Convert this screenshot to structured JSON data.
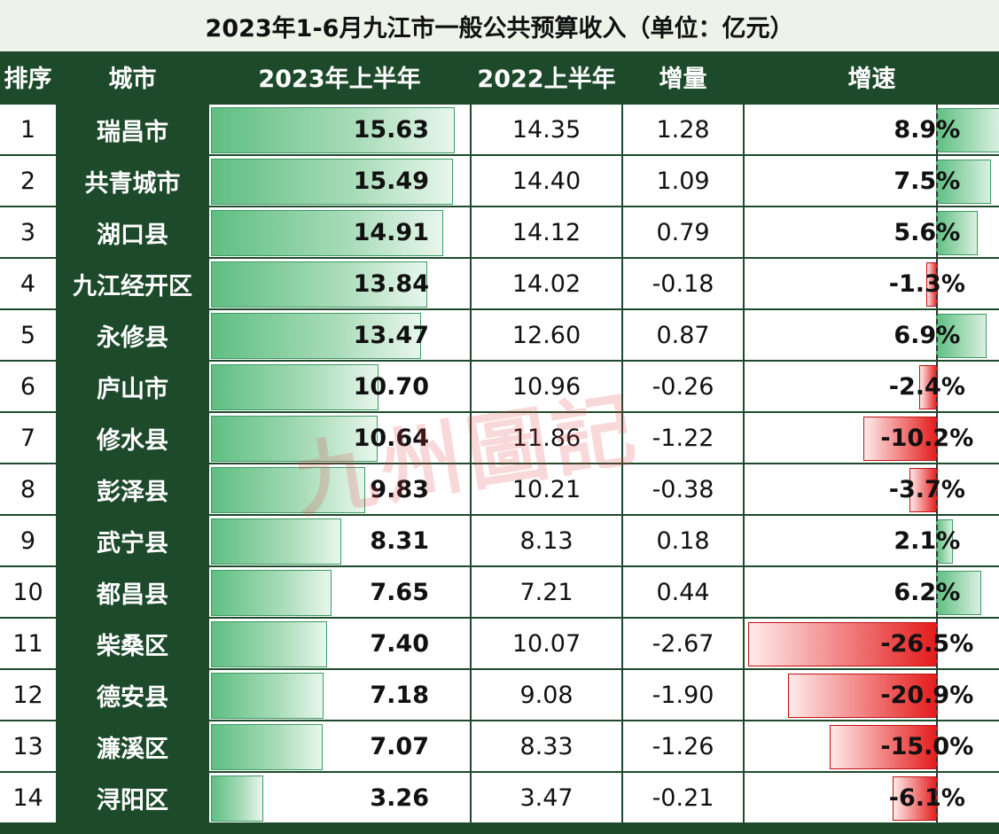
{
  "title": "2023年1-6月九江市一般公共预算收入（单位：亿元）",
  "watermark": "九州圖記",
  "colors": {
    "header_bg": "#1d4a2a",
    "positive": "#5fbf82",
    "negative": "#e41b1b"
  },
  "headers": {
    "rank": "排序",
    "city": "城市",
    "h2023": "2023年上半年",
    "h2022": "2022上半年",
    "increase": "增量",
    "growth": "增速"
  },
  "chart_data": {
    "type": "table",
    "title": "2023年1-6月九江市一般公共预算收入（单位：亿元）",
    "columns": [
      "排序",
      "城市",
      "2023年上半年",
      "2022上半年",
      "增量",
      "增速"
    ],
    "rows": [
      {
        "rank": "1",
        "city": "瑞昌市",
        "v2023": "15.63",
        "v2022": "14.35",
        "inc": "1.28",
        "growth": "8.9%",
        "gval": 8.9,
        "bval": 15.63
      },
      {
        "rank": "2",
        "city": "共青城市",
        "v2023": "15.49",
        "v2022": "14.40",
        "inc": "1.09",
        "growth": "7.5%",
        "gval": 7.5,
        "bval": 15.49
      },
      {
        "rank": "3",
        "city": "湖口县",
        "v2023": "14.91",
        "v2022": "14.12",
        "inc": "0.79",
        "growth": "5.6%",
        "gval": 5.6,
        "bval": 14.91
      },
      {
        "rank": "4",
        "city": "九江经开区",
        "v2023": "13.84",
        "v2022": "14.02",
        "inc": "-0.18",
        "growth": "-1.3%",
        "gval": -1.3,
        "bval": 13.84
      },
      {
        "rank": "5",
        "city": "永修县",
        "v2023": "13.47",
        "v2022": "12.60",
        "inc": "0.87",
        "growth": "6.9%",
        "gval": 6.9,
        "bval": 13.47
      },
      {
        "rank": "6",
        "city": "庐山市",
        "v2023": "10.70",
        "v2022": "10.96",
        "inc": "-0.26",
        "growth": "-2.4%",
        "gval": -2.4,
        "bval": 10.7
      },
      {
        "rank": "7",
        "city": "修水县",
        "v2023": "10.64",
        "v2022": "11.86",
        "inc": "-1.22",
        "growth": "-10.2%",
        "gval": -10.2,
        "bval": 10.64
      },
      {
        "rank": "8",
        "city": "彭泽县",
        "v2023": "9.83",
        "v2022": "10.21",
        "inc": "-0.38",
        "growth": "-3.7%",
        "gval": -3.7,
        "bval": 9.83
      },
      {
        "rank": "9",
        "city": "武宁县",
        "v2023": "8.31",
        "v2022": "8.13",
        "inc": "0.18",
        "growth": "2.1%",
        "gval": 2.1,
        "bval": 8.31
      },
      {
        "rank": "10",
        "city": "都昌县",
        "v2023": "7.65",
        "v2022": "7.21",
        "inc": "0.44",
        "growth": "6.2%",
        "gval": 6.2,
        "bval": 7.65
      },
      {
        "rank": "11",
        "city": "柴桑区",
        "v2023": "7.40",
        "v2022": "10.07",
        "inc": "-2.67",
        "growth": "-26.5%",
        "gval": -26.5,
        "bval": 7.4
      },
      {
        "rank": "12",
        "city": "德安县",
        "v2023": "7.18",
        "v2022": "9.08",
        "inc": "-1.90",
        "growth": "-20.9%",
        "gval": -20.9,
        "bval": 7.18
      },
      {
        "rank": "13",
        "city": "濂溪区",
        "v2023": "7.07",
        "v2022": "8.33",
        "inc": "-1.26",
        "growth": "-15.0%",
        "gval": -15.0,
        "bval": 7.07
      },
      {
        "rank": "14",
        "city": "浔阳区",
        "v2023": "3.26",
        "v2022": "3.47",
        "inc": "-0.21",
        "growth": "-6.1%",
        "gval": -6.1,
        "bval": 3.26
      }
    ],
    "bar_scale_max": 16.6,
    "growth_range": [
      -26.5,
      8.9
    ]
  }
}
